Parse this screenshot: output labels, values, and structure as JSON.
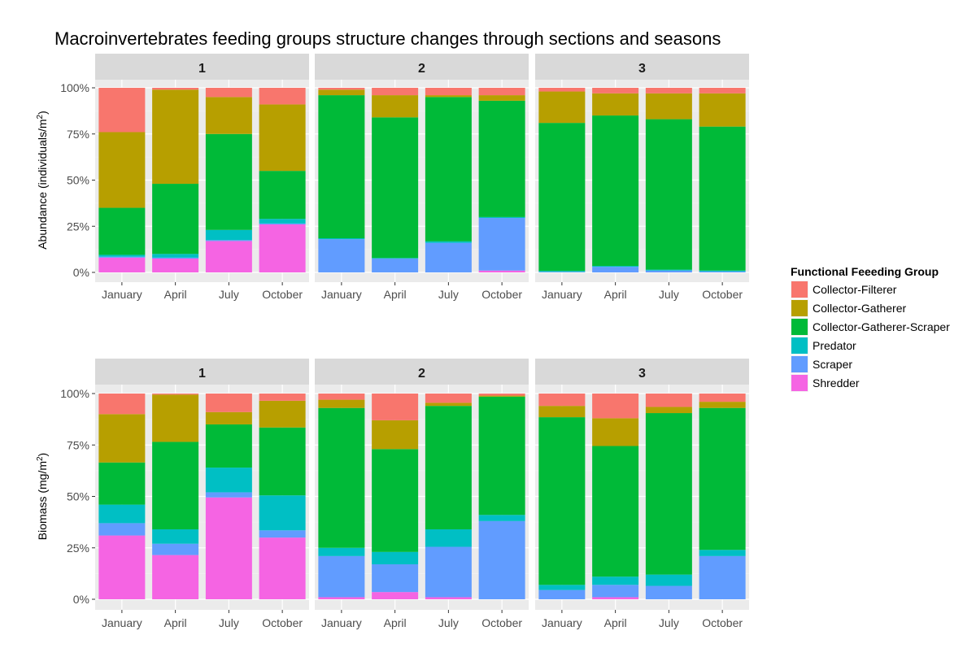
{
  "chart_data": {
    "type": "bar",
    "stacked": true,
    "title": "Macroinvertebrates feeding groups structure changes through sections and seasons",
    "categories": [
      "January",
      "April",
      "July",
      "October"
    ],
    "sections": [
      "1",
      "2",
      "3"
    ],
    "y_ticks": [
      "0%",
      "25%",
      "50%",
      "75%",
      "100%"
    ],
    "ylim": [
      0,
      100
    ],
    "legend": {
      "title": "Functional Feeeding Group",
      "position": "right",
      "entries": [
        {
          "name": "Collector-Filterer",
          "color": "#F8766D"
        },
        {
          "name": "Collector-Gatherer",
          "color": "#B79F00"
        },
        {
          "name": "Collector-Gatherer-Scraper",
          "color": "#00BA38"
        },
        {
          "name": "Predator",
          "color": "#00BFC4"
        },
        {
          "name": "Scraper",
          "color": "#619CFF"
        },
        {
          "name": "Shredder",
          "color": "#F564E3"
        }
      ]
    },
    "rows": [
      {
        "metric": "Abundance",
        "ylabel": "Abundance (individuals/m",
        "ylabel_sup": "2",
        "ylabel_end": ")",
        "panels": [
          {
            "section": "1",
            "bars": [
              {
                "category": "January",
                "Shredder": 8,
                "Scraper": 0.5,
                "Predator": 1,
                "Collector-Gatherer-Scraper": 25.5,
                "Collector-Gatherer": 41,
                "Collector-Filterer": 24
              },
              {
                "category": "April",
                "Shredder": 7.5,
                "Scraper": 0.5,
                "Predator": 2,
                "Collector-Gatherer-Scraper": 38,
                "Collector-Gatherer": 51,
                "Collector-Filterer": 1
              },
              {
                "category": "July",
                "Shredder": 17,
                "Scraper": 0.5,
                "Predator": 5.5,
                "Collector-Gatherer-Scraper": 52,
                "Collector-Gatherer": 20,
                "Collector-Filterer": 5
              },
              {
                "category": "October",
                "Shredder": 26,
                "Scraper": 0.5,
                "Predator": 2.5,
                "Collector-Gatherer-Scraper": 26,
                "Collector-Gatherer": 36,
                "Collector-Filterer": 9
              }
            ]
          },
          {
            "section": "2",
            "bars": [
              {
                "category": "January",
                "Shredder": 0,
                "Scraper": 18,
                "Predator": 0.5,
                "Collector-Gatherer-Scraper": 77.5,
                "Collector-Gatherer": 3,
                "Collector-Filterer": 1
              },
              {
                "category": "April",
                "Shredder": 0,
                "Scraper": 7.5,
                "Predator": 0.3,
                "Collector-Gatherer-Scraper": 76.2,
                "Collector-Gatherer": 12,
                "Collector-Filterer": 4
              },
              {
                "category": "July",
                "Shredder": 0,
                "Scraper": 16,
                "Predator": 0.8,
                "Collector-Gatherer-Scraper": 78.2,
                "Collector-Gatherer": 1,
                "Collector-Filterer": 4
              },
              {
                "category": "October",
                "Shredder": 1,
                "Scraper": 28.5,
                "Predator": 0.5,
                "Collector-Gatherer-Scraper": 63,
                "Collector-Gatherer": 3,
                "Collector-Filterer": 4
              }
            ]
          },
          {
            "section": "3",
            "bars": [
              {
                "category": "January",
                "Shredder": 0,
                "Scraper": 0.3,
                "Predator": 0.5,
                "Collector-Gatherer-Scraper": 80.2,
                "Collector-Gatherer": 17,
                "Collector-Filterer": 2
              },
              {
                "category": "April",
                "Shredder": 0,
                "Scraper": 3,
                "Predator": 0.5,
                "Collector-Gatherer-Scraper": 81.5,
                "Collector-Gatherer": 12,
                "Collector-Filterer": 3
              },
              {
                "category": "July",
                "Shredder": 0,
                "Scraper": 1,
                "Predator": 0.5,
                "Collector-Gatherer-Scraper": 81.5,
                "Collector-Gatherer": 14,
                "Collector-Filterer": 3
              },
              {
                "category": "October",
                "Shredder": 0,
                "Scraper": 0.5,
                "Predator": 0.5,
                "Collector-Gatherer-Scraper": 78,
                "Collector-Gatherer": 18,
                "Collector-Filterer": 3
              }
            ]
          }
        ]
      },
      {
        "metric": "Biomass",
        "ylabel": "Biomass (mg/m",
        "ylabel_sup": "2",
        "ylabel_end": ")",
        "panels": [
          {
            "section": "1",
            "bars": [
              {
                "category": "January",
                "Shredder": 31,
                "Scraper": 6,
                "Predator": 9,
                "Collector-Gatherer-Scraper": 20.5,
                "Collector-Gatherer": 23.5,
                "Collector-Filterer": 10
              },
              {
                "category": "April",
                "Shredder": 21.5,
                "Scraper": 5.5,
                "Predator": 7,
                "Collector-Gatherer-Scraper": 42.5,
                "Collector-Gatherer": 23,
                "Collector-Filterer": 0.5
              },
              {
                "category": "July",
                "Shredder": 49.5,
                "Scraper": 2.5,
                "Predator": 12,
                "Collector-Gatherer-Scraper": 21,
                "Collector-Gatherer": 6,
                "Collector-Filterer": 9
              },
              {
                "category": "October",
                "Shredder": 30,
                "Scraper": 3.5,
                "Predator": 17,
                "Collector-Gatherer-Scraper": 33,
                "Collector-Gatherer": 13,
                "Collector-Filterer": 3.5
              }
            ]
          },
          {
            "section": "2",
            "bars": [
              {
                "category": "January",
                "Shredder": 1,
                "Scraper": 20,
                "Predator": 4,
                "Collector-Gatherer-Scraper": 68,
                "Collector-Gatherer": 4,
                "Collector-Filterer": 3
              },
              {
                "category": "April",
                "Shredder": 3.5,
                "Scraper": 13.5,
                "Predator": 6,
                "Collector-Gatherer-Scraper": 50,
                "Collector-Gatherer": 14,
                "Collector-Filterer": 13
              },
              {
                "category": "July",
                "Shredder": 1,
                "Scraper": 24.5,
                "Predator": 8.5,
                "Collector-Gatherer-Scraper": 60,
                "Collector-Gatherer": 1.5,
                "Collector-Filterer": 4.5
              },
              {
                "category": "October",
                "Shredder": 0,
                "Scraper": 38,
                "Predator": 3,
                "Collector-Gatherer-Scraper": 57.5,
                "Collector-Gatherer": 0.5,
                "Collector-Filterer": 1
              }
            ]
          },
          {
            "section": "3",
            "bars": [
              {
                "category": "January",
                "Shredder": 0,
                "Scraper": 4.5,
                "Predator": 2.5,
                "Collector-Gatherer-Scraper": 81.5,
                "Collector-Gatherer": 5.5,
                "Collector-Filterer": 6
              },
              {
                "category": "April",
                "Shredder": 1,
                "Scraper": 6,
                "Predator": 4,
                "Collector-Gatherer-Scraper": 63.5,
                "Collector-Gatherer": 13.5,
                "Collector-Filterer": 12
              },
              {
                "category": "July",
                "Shredder": 0,
                "Scraper": 6.5,
                "Predator": 5.5,
                "Collector-Gatherer-Scraper": 78.5,
                "Collector-Gatherer": 3,
                "Collector-Filterer": 6.5
              },
              {
                "category": "October",
                "Shredder": 0,
                "Scraper": 21,
                "Predator": 3,
                "Collector-Gatherer-Scraper": 69,
                "Collector-Gatherer": 3,
                "Collector-Filterer": 4
              }
            ]
          }
        ]
      }
    ]
  }
}
